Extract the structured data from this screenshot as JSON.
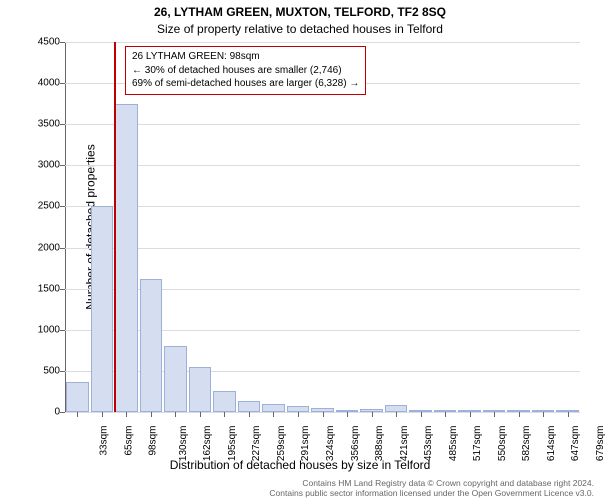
{
  "title_line1": "26, LYTHAM GREEN, MUXTON, TELFORD, TF2 8SQ",
  "title_line2": "Size of property relative to detached houses in Telford",
  "y_axis_label": "Number of detached properties",
  "x_axis_label": "Distribution of detached houses by size in Telford",
  "chart": {
    "type": "bar",
    "ylim": [
      0,
      4500
    ],
    "yticks": [
      0,
      500,
      1000,
      1500,
      2000,
      2500,
      3000,
      3500,
      4000,
      4500
    ],
    "x_categories": [
      "33sqm",
      "65sqm",
      "98sqm",
      "130sqm",
      "162sqm",
      "195sqm",
      "227sqm",
      "259sqm",
      "291sqm",
      "324sqm",
      "356sqm",
      "388sqm",
      "421sqm",
      "453sqm",
      "485sqm",
      "517sqm",
      "550sqm",
      "582sqm",
      "614sqm",
      "647sqm",
      "679sqm"
    ],
    "values": [
      370,
      2500,
      3750,
      1620,
      800,
      550,
      250,
      130,
      100,
      70,
      50,
      30,
      40,
      80,
      20,
      10,
      10,
      5,
      5,
      5,
      5
    ],
    "bar_fill": "#d5ddf1",
    "bar_stroke": "#9fb0d8",
    "marker_index": 2,
    "marker_color": "#c00000",
    "grid_color": "#d9dde3",
    "background_color": "#ffffff",
    "bar_width_ratio": 0.92
  },
  "annotation": {
    "line1": "26 LYTHAM GREEN: 98sqm",
    "line2": "← 30% of detached houses are smaller (2,746)",
    "line3": "69% of semi-detached houses are larger (6,328) →",
    "border_color": "#c00000"
  },
  "footer_line1": "Contains HM Land Registry data © Crown copyright and database right 2024.",
  "footer_line2": "Contains public sector information licensed under the Open Government Licence v3.0."
}
